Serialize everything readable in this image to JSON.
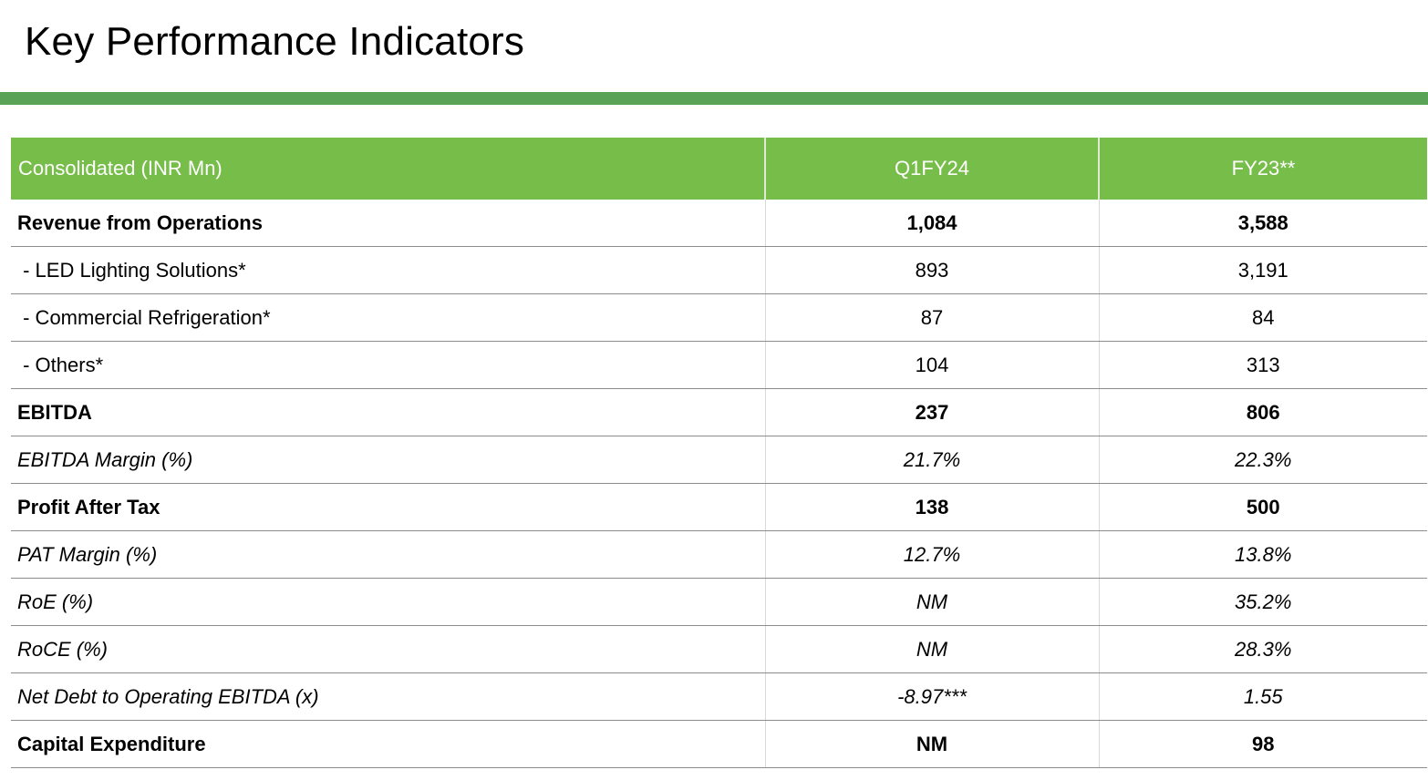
{
  "page": {
    "title": "Key Performance Indicators"
  },
  "colors": {
    "title_rule": "#5aa356",
    "header_bg": "#77bd4a",
    "header_text": "#ffffff",
    "row_border": "#8c8c8c"
  },
  "table": {
    "headers": [
      "Consolidated (INR Mn)",
      "Q1FY24",
      "FY23**"
    ],
    "rows": [
      {
        "style": "bold",
        "cells": [
          "Revenue from Operations",
          "1,084",
          "3,588"
        ]
      },
      {
        "style": "normal",
        "cells": [
          " - LED Lighting Solutions*",
          "893",
          "3,191"
        ]
      },
      {
        "style": "normal",
        "cells": [
          " - Commercial Refrigeration*",
          "87",
          "84"
        ]
      },
      {
        "style": "normal",
        "cells": [
          " - Others*",
          "104",
          "313"
        ]
      },
      {
        "style": "bold",
        "cells": [
          "EBITDA",
          "237",
          "806"
        ]
      },
      {
        "style": "italic",
        "cells": [
          "EBITDA Margin (%)",
          "21.7%",
          "22.3%"
        ]
      },
      {
        "style": "bold",
        "cells": [
          "Profit After Tax",
          "138",
          "500"
        ]
      },
      {
        "style": "italic",
        "cells": [
          "PAT Margin (%)",
          "12.7%",
          "13.8%"
        ]
      },
      {
        "style": "italic",
        "cells": [
          "RoE (%)",
          "NM",
          "35.2%"
        ]
      },
      {
        "style": "italic",
        "cells": [
          "RoCE (%)",
          "NM",
          "28.3%"
        ]
      },
      {
        "style": "italic",
        "cells": [
          "Net Debt to Operating EBITDA (x)",
          "-8.97***",
          "1.55"
        ]
      },
      {
        "style": "bold",
        "cells": [
          "Capital Expenditure",
          "NM",
          "98"
        ]
      }
    ]
  }
}
